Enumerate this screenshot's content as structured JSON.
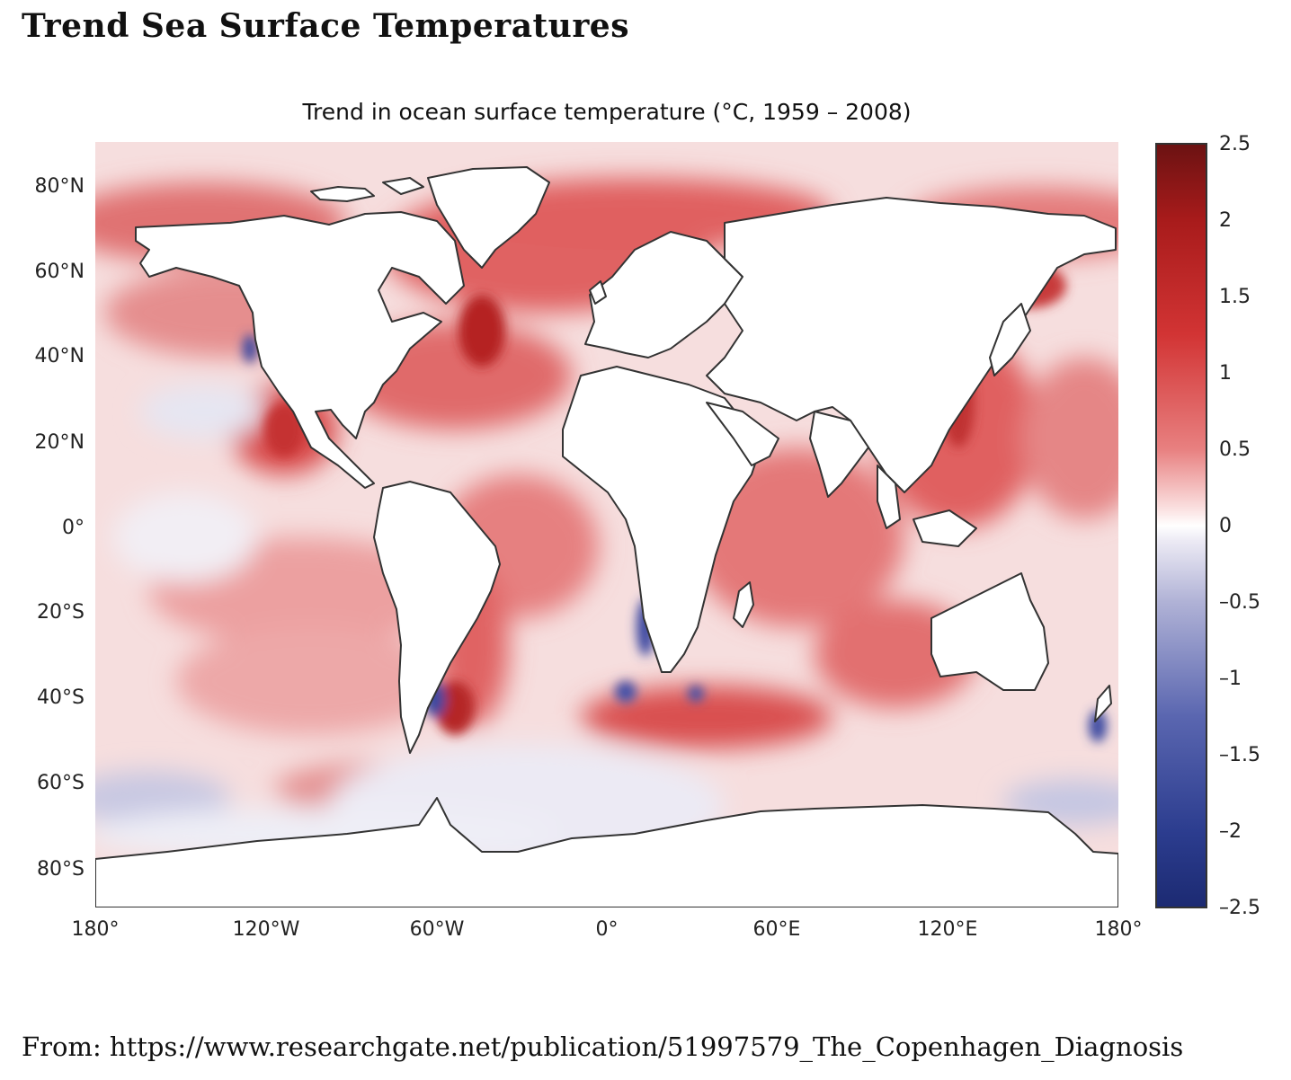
{
  "page_title": "Trend Sea Surface Temperatures",
  "figure": {
    "title": "Trend in ocean surface temperature (°C, 1959 – 2008)",
    "lat_labels": [
      "80°N",
      "60°N",
      "40°N",
      "20°N",
      "0°",
      "20°S",
      "40°S",
      "60°S",
      "80°S"
    ],
    "lon_labels": [
      "180°",
      "120°W",
      "60°W",
      "0°",
      "60°E",
      "120°E",
      "180°"
    ],
    "colorbar_labels": [
      "2.5",
      "2",
      "1.5",
      "1",
      "0.5",
      "0",
      "–0.5",
      "–1",
      "–1.5",
      "–2",
      "–2.5"
    ],
    "colorbar_range": [
      -2.5,
      2.5
    ],
    "colors": {
      "warm": "#c62828",
      "cool": "#2c3d8f",
      "neutral": "#ffffff",
      "land": "#ffffff",
      "coast": "#333333"
    }
  },
  "source": "From: https://www.researchgate.net/publication/51997579_The_Copenhagen_Diagnosis"
}
